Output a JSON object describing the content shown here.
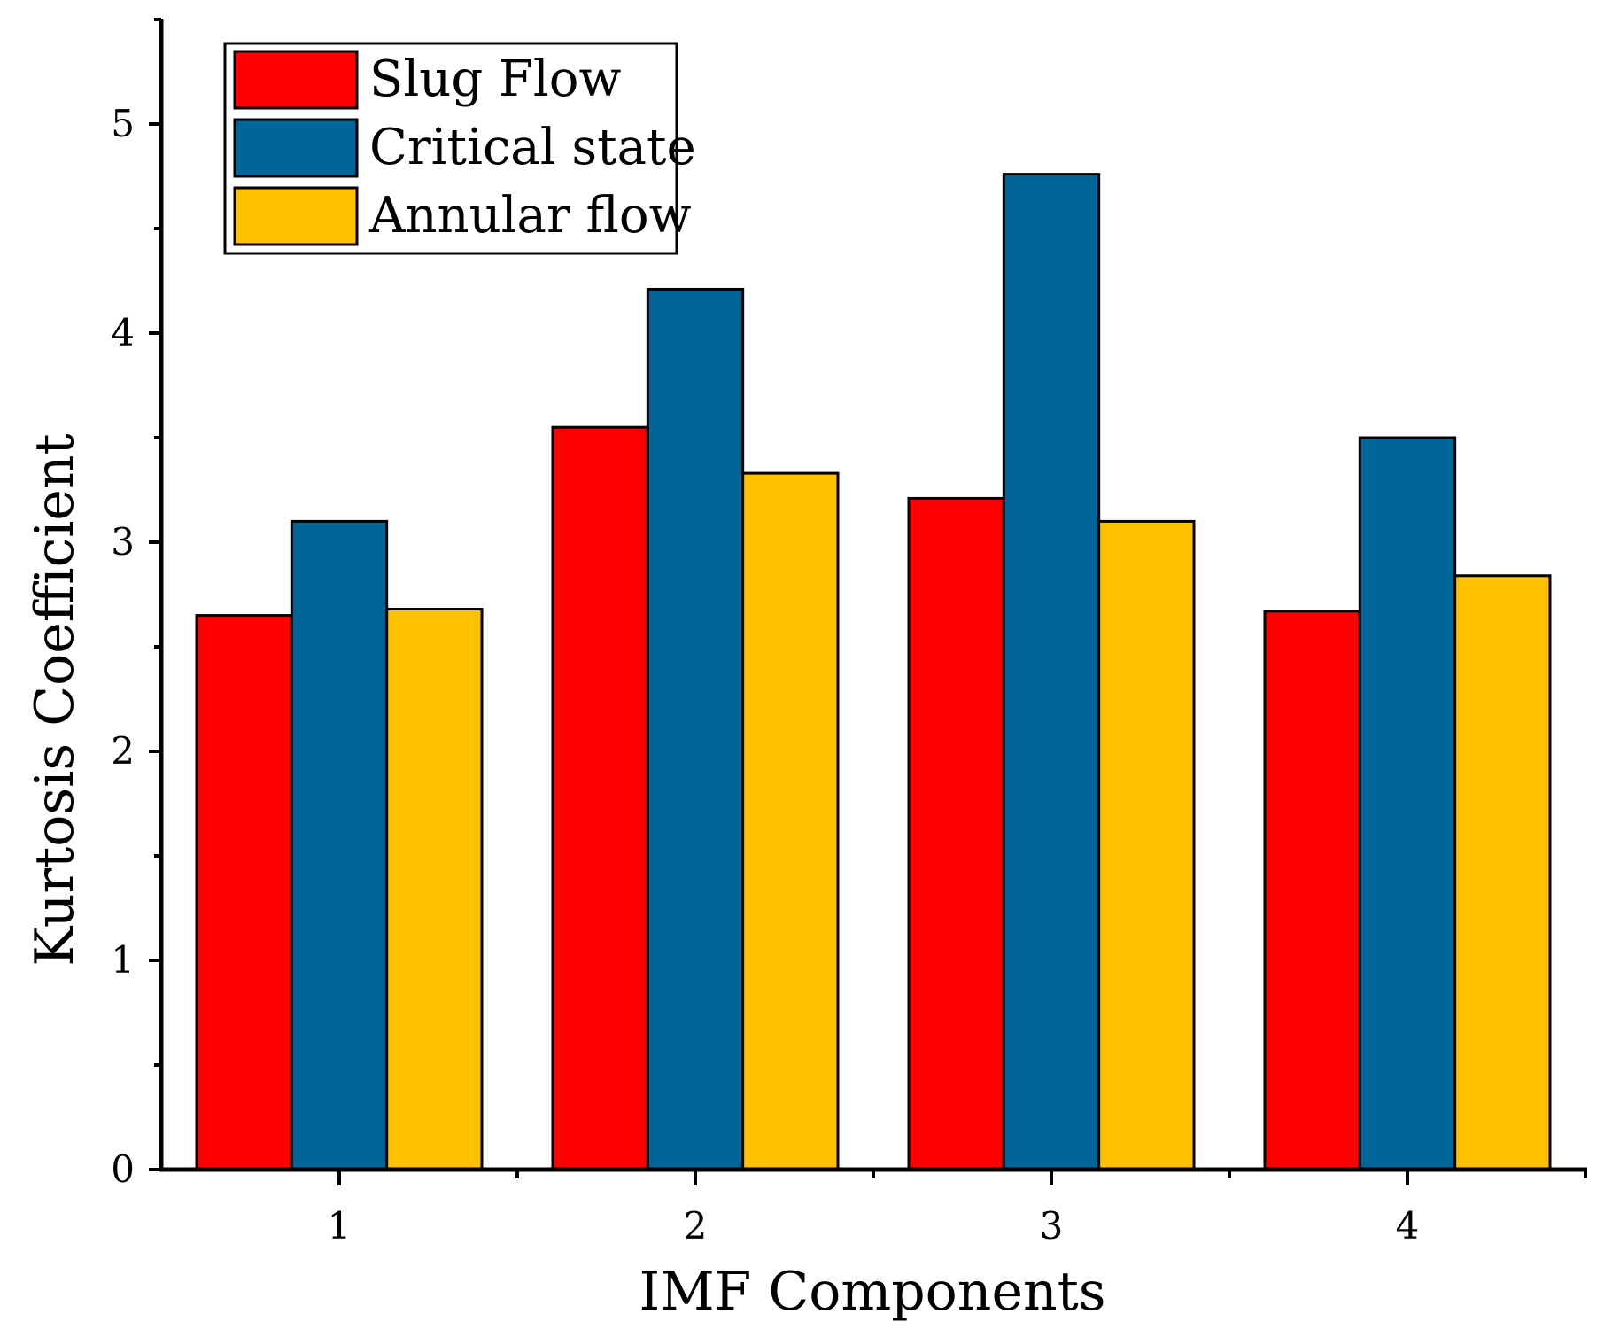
{
  "chart_data": {
    "type": "bar",
    "title": "",
    "xlabel": "IMF Components",
    "ylabel": "Kurtosis Coefficient",
    "categories": [
      "1",
      "2",
      "3",
      "4"
    ],
    "series": [
      {
        "name": "Slug Flow",
        "color": "#ff0000",
        "values": [
          2.65,
          3.55,
          3.21,
          2.67
        ]
      },
      {
        "name": "Critical state",
        "color": "#006699",
        "values": [
          3.1,
          4.21,
          4.76,
          3.5
        ]
      },
      {
        "name": "Annular flow",
        "color": "#ffc000",
        "values": [
          2.68,
          3.33,
          3.1,
          2.84
        ]
      }
    ],
    "ylim": [
      0,
      5.5
    ],
    "yticks": [
      0,
      1,
      2,
      3,
      4,
      5
    ],
    "grid": false,
    "legend_position": "top-left"
  }
}
